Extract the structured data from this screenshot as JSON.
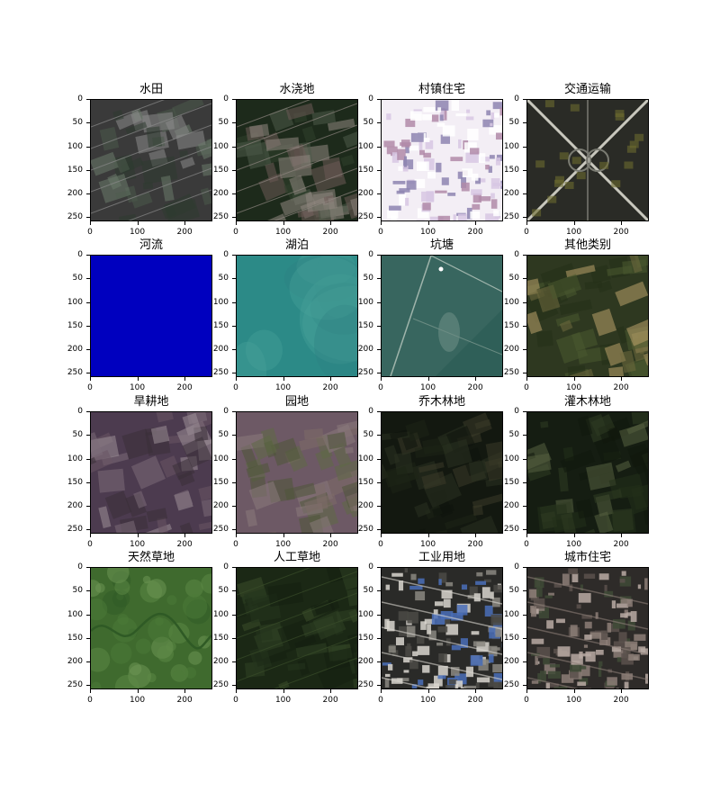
{
  "figure": {
    "axis": {
      "xticks": [
        "0",
        "100",
        "200"
      ],
      "yticks": [
        "0",
        "50",
        "100",
        "150",
        "200",
        "250"
      ],
      "range": [
        0,
        255
      ]
    },
    "panels": [
      {
        "id": "paddy",
        "title": "水田",
        "colors": [
          "#3a3a3a",
          "#4a5a4a",
          "#6a7a6a",
          "#2d3b30",
          "#8a8a8a"
        ]
      },
      {
        "id": "irrigated",
        "title": "水浇地",
        "colors": [
          "#1d2a1b",
          "#2f3f2b",
          "#4d5a48",
          "#6b5a55",
          "#8f8680"
        ]
      },
      {
        "id": "village",
        "title": "村镇住宅",
        "colors": [
          "#f3eef5",
          "#d7c7e3",
          "#8d84b0",
          "#b08aa8",
          "#ffffff"
        ]
      },
      {
        "id": "transport",
        "title": "交通运输",
        "colors": [
          "#2a2b26",
          "#4b4f3e",
          "#7a7b72",
          "#c8c7bd",
          "#6d6a2f"
        ]
      },
      {
        "id": "river",
        "title": "河流",
        "colors": [
          "#0000bf",
          "#0000c4",
          "#0000c8",
          "#0000bd",
          "#0000c0"
        ]
      },
      {
        "id": "lake",
        "title": "湖泊",
        "colors": [
          "#2c8a87",
          "#2f7f80",
          "#3d9690",
          "#267a7a",
          "#4ba39c"
        ]
      },
      {
        "id": "pond",
        "title": "坑塘",
        "colors": [
          "#3c6a63",
          "#2f5f58",
          "#54786f",
          "#6b8c83",
          "#9fb4ab"
        ]
      },
      {
        "id": "other",
        "title": "其他类别",
        "colors": [
          "#2e3820",
          "#4a5a2f",
          "#6f6a3e",
          "#b9a06a",
          "#243018"
        ]
      },
      {
        "id": "dryland",
        "title": "旱耕地",
        "colors": [
          "#4c3b4f",
          "#6a5565",
          "#7c6b78",
          "#3a3038",
          "#9c8f98"
        ]
      },
      {
        "id": "orchard",
        "title": "园地",
        "colors": [
          "#6d5965",
          "#7d6b68",
          "#5f6a45",
          "#8a7a7c",
          "#4f5538"
        ]
      },
      {
        "id": "arbor",
        "title": "乔木林地",
        "colors": [
          "#131810",
          "#1d2416",
          "#2a3120",
          "#0f140d",
          "#3a3a28"
        ]
      },
      {
        "id": "shrub",
        "title": "灌木林地",
        "colors": [
          "#151d12",
          "#22301a",
          "#2f3d22",
          "#10170d",
          "#55603f"
        ]
      },
      {
        "id": "natural-grass",
        "title": "天然草地",
        "colors": [
          "#3f6a2e",
          "#4c7a38",
          "#5e8a45",
          "#2f5a25",
          "#6f9855"
        ]
      },
      {
        "id": "artificial-grass",
        "title": "人工草地",
        "colors": [
          "#1b2815",
          "#25351d",
          "#2f4225",
          "#141f10",
          "#3a4d2a"
        ]
      },
      {
        "id": "industrial",
        "title": "工业用地",
        "colors": [
          "#2a2a28",
          "#4b4a45",
          "#d9d6cf",
          "#8a8780",
          "#4a6fb8"
        ]
      },
      {
        "id": "urban",
        "title": "城市住宅",
        "colors": [
          "#2e2b29",
          "#5a514c",
          "#8c7e77",
          "#3e4a36",
          "#b8aaa3"
        ]
      }
    ]
  }
}
